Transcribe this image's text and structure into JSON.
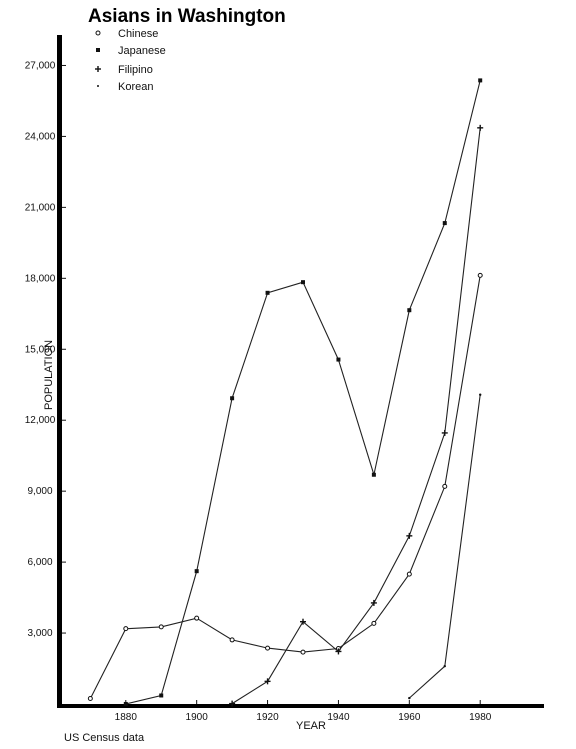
{
  "chart_data": {
    "type": "line",
    "title": "Asians in Washington",
    "xlabel": "YEAR",
    "ylabel": "POPULATION",
    "source": "US Census data",
    "xlim": [
      1862,
      1998
    ],
    "ylim": [
      0,
      28500
    ],
    "x_ticks": [
      1880,
      1900,
      1920,
      1940,
      1960,
      1980
    ],
    "y_ticks": [
      3000,
      6000,
      9000,
      12000,
      15000,
      18000,
      21000,
      24000,
      27000
    ],
    "y_tick_labels": [
      "3,000",
      "6,000",
      "9,000",
      "12,000",
      "15,000",
      "18,000",
      "21,000",
      "24,000",
      "27,000"
    ],
    "grid": false,
    "legend_position": "top-left",
    "series": [
      {
        "name": "Chinese",
        "marker": "open-circle",
        "x": [
          1870,
          1880,
          1890,
          1900,
          1910,
          1920,
          1930,
          1940,
          1950,
          1960,
          1970,
          1980
        ],
        "y": [
          234,
          3186,
          3260,
          3629,
          2709,
          2363,
          2195,
          2345,
          3408,
          5491,
          9201,
          18125
        ]
      },
      {
        "name": "Japanese",
        "marker": "filled-square",
        "x": [
          1880,
          1890,
          1900,
          1910,
          1920,
          1930,
          1940,
          1950,
          1960,
          1970,
          1980
        ],
        "y": [
          1,
          360,
          5617,
          12929,
          17387,
          17837,
          14565,
          9694,
          16652,
          20335,
          26369
        ]
      },
      {
        "name": "Filipino",
        "marker": "plus",
        "x": [
          1910,
          1920,
          1930,
          1940,
          1950,
          1960,
          1970,
          1980
        ],
        "y": [
          17,
          958,
          3480,
          2222,
          4274,
          7110,
          11462,
          24363
        ]
      },
      {
        "name": "Korean",
        "marker": "small-dot",
        "x": [
          1960,
          1970,
          1980
        ],
        "y": [
          250,
          1600,
          13077
        ]
      }
    ]
  }
}
